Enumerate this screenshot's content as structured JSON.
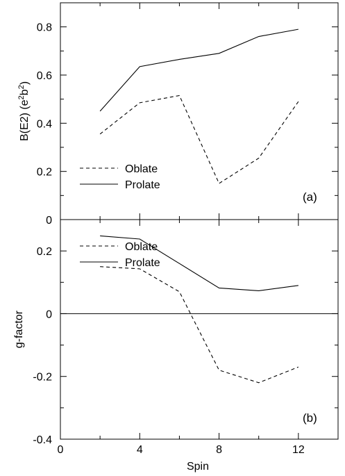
{
  "chart_data": [
    {
      "type": "line",
      "panel_label": "(a)",
      "ylabel": "B(E2) (e2b2)",
      "ylabel_main": "B(E2) (e",
      "ylabel_sup1": "2",
      "ylabel_mid": "b",
      "ylabel_sup2": "2",
      "ylabel_end": ")",
      "xlim": [
        0,
        14
      ],
      "ylim": [
        0,
        0.9
      ],
      "yticks": [
        0,
        0.2,
        0.4,
        0.6,
        0.8
      ],
      "ytick_labels": [
        "0",
        "0.2",
        "0.4",
        "0.6",
        "0.8"
      ],
      "legend_position": "lower-left",
      "x": [
        2,
        4,
        6,
        8,
        10,
        12
      ],
      "series": [
        {
          "name": "Oblate",
          "style": "dashed",
          "color": "#000000",
          "values": [
            0.355,
            0.485,
            0.515,
            0.15,
            0.255,
            0.49
          ]
        },
        {
          "name": "Prolate",
          "style": "solid",
          "color": "#000000",
          "values": [
            0.45,
            0.635,
            0.665,
            0.69,
            0.76,
            0.79
          ]
        }
      ]
    },
    {
      "type": "line",
      "panel_label": "(b)",
      "ylabel": "g-factor",
      "xlabel": "Spin",
      "xlim": [
        0,
        14
      ],
      "xticks": [
        0,
        4,
        8,
        12
      ],
      "xtick_labels": [
        "0",
        "4",
        "8",
        "12"
      ],
      "ylim": [
        -0.4,
        0.3
      ],
      "yticks": [
        -0.4,
        -0.2,
        0,
        0.2
      ],
      "ytick_labels": [
        "-0.4",
        "-0.2",
        "0",
        "0.2"
      ],
      "zero_line": true,
      "legend_position": "lower-left",
      "x": [
        2,
        4,
        6,
        8,
        10,
        12
      ],
      "series": [
        {
          "name": "Oblate",
          "style": "dashed",
          "color": "#000000",
          "values": [
            0.15,
            0.143,
            0.07,
            -0.18,
            -0.22,
            -0.17
          ]
        },
        {
          "name": "Prolate",
          "style": "solid",
          "color": "#000000",
          "values": [
            0.248,
            0.238,
            0.16,
            0.082,
            0.073,
            0.09
          ]
        }
      ]
    }
  ]
}
